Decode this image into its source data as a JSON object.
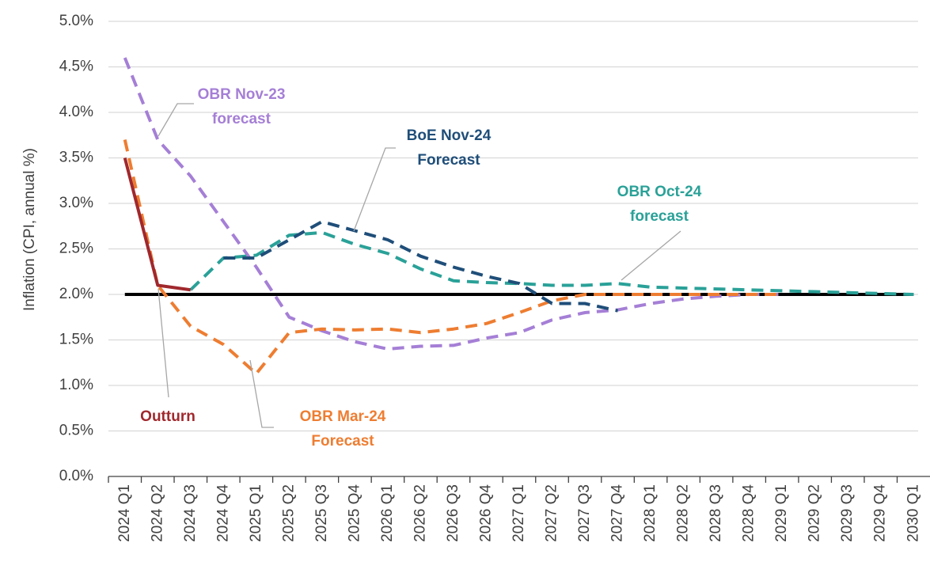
{
  "chart_data": {
    "type": "line",
    "y_label": "Inflation (CPI, annual %)",
    "categories": [
      "2024 Q1",
      "2024 Q2",
      "2024 Q3",
      "2024 Q4",
      "2025 Q1",
      "2025 Q2",
      "2025 Q3",
      "2025 Q4",
      "2026 Q1",
      "2026 Q2",
      "2026 Q3",
      "2026 Q4",
      "2027 Q1",
      "2027 Q2",
      "2027 Q3",
      "2027 Q4",
      "2028 Q1",
      "2028 Q2",
      "2028 Q3",
      "2028 Q4",
      "2029 Q1",
      "2029 Q2",
      "2029 Q3",
      "2029 Q4",
      "2030 Q1"
    ],
    "ylim": [
      0,
      5
    ],
    "yticks": [
      {
        "value": 0,
        "label": "0.0%"
      },
      {
        "value": 0.5,
        "label": "0.5%"
      },
      {
        "value": 1,
        "label": "1.0%"
      },
      {
        "value": 1.5,
        "label": "1.5%"
      },
      {
        "value": 2,
        "label": "2.0%"
      },
      {
        "value": 2.5,
        "label": "2.5%"
      },
      {
        "value": 3,
        "label": "3.0%"
      },
      {
        "value": 3.5,
        "label": "3.5%"
      },
      {
        "value": 4,
        "label": "4.0%"
      },
      {
        "value": 4.5,
        "label": "4.5%"
      },
      {
        "value": 5,
        "label": "5.0%"
      }
    ],
    "grid": true,
    "reference_line": {
      "value": 2,
      "color": "#000000"
    },
    "series": [
      {
        "name": [
          "OBR Nov-23",
          "forecast"
        ],
        "color": "#a57fd6",
        "dashed": true,
        "values": [
          4.6,
          3.7,
          3.3,
          2.8,
          2.3,
          1.75,
          1.6,
          1.48,
          1.4,
          1.43,
          1.44,
          1.52,
          1.58,
          1.72,
          1.8,
          1.83,
          1.9,
          1.95,
          1.98,
          2.0,
          2.0,
          null,
          null,
          null,
          null
        ]
      },
      {
        "name": [
          "OBR Mar-24",
          "Forecast"
        ],
        "color": "#ee7d31",
        "dashed": true,
        "values": [
          3.7,
          2.1,
          1.65,
          1.45,
          1.13,
          1.58,
          1.62,
          1.61,
          1.62,
          1.58,
          1.62,
          1.68,
          1.8,
          1.93,
          2.0,
          2.0,
          2.0,
          2.0,
          2.0,
          2.0,
          2.0,
          null,
          null,
          null,
          null
        ]
      },
      {
        "name": [
          "OBR Oct-24",
          "forecast"
        ],
        "color": "#2aa198",
        "dashed": true,
        "values": [
          null,
          null,
          2.05,
          2.4,
          2.43,
          2.65,
          2.68,
          2.55,
          2.45,
          2.28,
          2.15,
          2.13,
          2.12,
          2.1,
          2.1,
          2.12,
          2.08,
          2.07,
          2.06,
          2.05,
          2.04,
          2.03,
          2.02,
          2.01,
          2.0
        ]
      },
      {
        "name": [
          "BoE Nov-24",
          "Forecast"
        ],
        "color": "#1f4e79",
        "dashed": true,
        "values": [
          null,
          null,
          null,
          2.4,
          2.4,
          2.6,
          2.8,
          2.7,
          2.6,
          2.42,
          2.3,
          2.2,
          2.12,
          1.9,
          1.9,
          1.82,
          null,
          null,
          null,
          null,
          null,
          null,
          null,
          null,
          null
        ]
      },
      {
        "name": [
          "Outturn"
        ],
        "color": "#a0282d",
        "dashed": false,
        "values": [
          3.5,
          2.1,
          2.05,
          null,
          null,
          null,
          null,
          null,
          null,
          null,
          null,
          null,
          null,
          null,
          null,
          null,
          null,
          null,
          null,
          null,
          null,
          null,
          null,
          null,
          null
        ]
      }
    ]
  }
}
